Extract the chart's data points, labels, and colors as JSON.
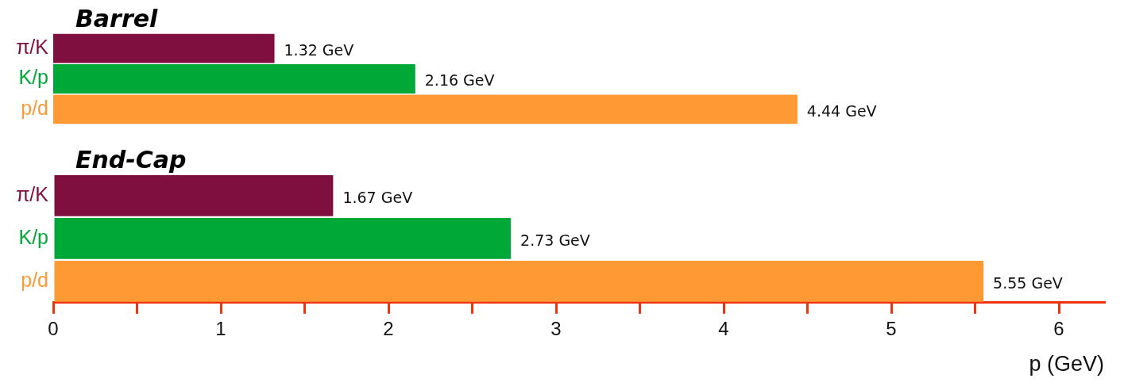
{
  "chart_data": [
    {
      "type": "bar",
      "orientation": "horizontal",
      "title": "Barrel",
      "categories": [
        "π/K",
        "K/p",
        "p/d"
      ],
      "values": [
        1.32,
        2.16,
        4.44
      ],
      "colors": [
        "#7f0f3f",
        "#00a838",
        "#ff9933"
      ],
      "value_labels": [
        "1.32 GeV",
        "2.16 GeV",
        "4.44 GeV"
      ],
      "tick_labels": "y",
      "grid": false,
      "legend": false
    },
    {
      "type": "bar",
      "orientation": "horizontal",
      "title": "End-Cap",
      "categories": [
        "π/K",
        "K/p",
        "p/d"
      ],
      "values": [
        1.67,
        2.73,
        5.55
      ],
      "colors": [
        "#7f0f3f",
        "#00a838",
        "#ff9933"
      ],
      "value_labels": [
        "1.67 GeV",
        "2.73 GeV",
        "5.55 GeV"
      ],
      "xlim": [
        0,
        6.27
      ],
      "xticks": [
        0,
        {
          "value": 0.5,
          "label": null
        },
        1,
        {
          "value": 1.5,
          "label": null
        },
        2,
        {
          "value": 2.5,
          "label": null
        },
        3,
        {
          "value": 3.5,
          "label": null
        },
        4,
        {
          "value": 4.5,
          "label": null
        },
        5,
        {
          "value": 5.5,
          "label": null
        },
        6
      ],
      "xlabel": "p (GeV)",
      "grid": false,
      "legend": false
    }
  ]
}
